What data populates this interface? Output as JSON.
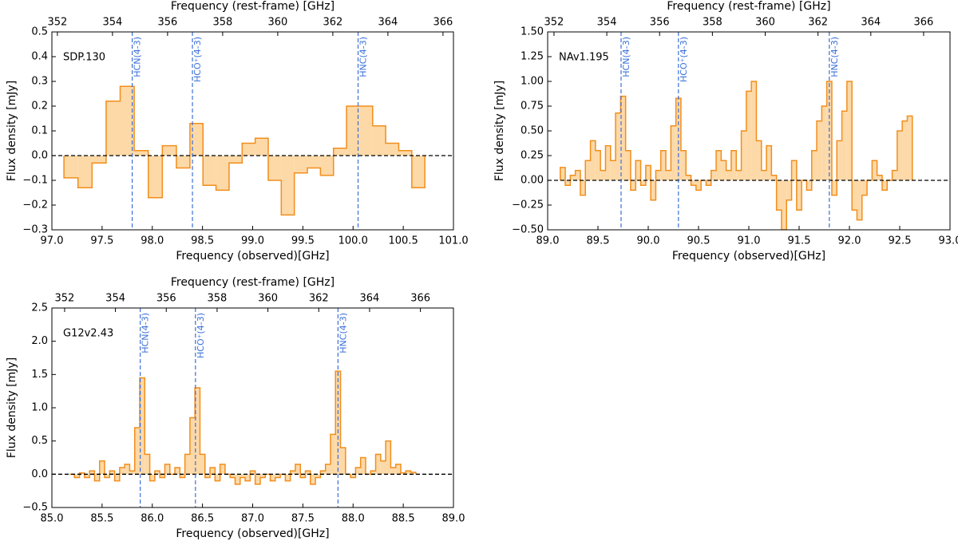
{
  "chart_data": [
    {
      "type": "step",
      "annotation": "SDP.130",
      "xlabel": "Frequency  (observed)[GHz]",
      "x2label": "Frequency (rest-frame) [GHz]",
      "ylabel": "Flux density [mJy]",
      "xlim": [
        97.0,
        101.0
      ],
      "xticks": [
        {
          "value": 97.0,
          "label": "97.0"
        },
        {
          "value": 97.5,
          "label": "97.5"
        },
        {
          "value": 98.0,
          "label": "98.0"
        },
        {
          "value": 98.5,
          "label": "98.5"
        },
        {
          "value": 99.0,
          "label": "99.0"
        },
        {
          "value": 99.5,
          "label": "99.5"
        },
        {
          "value": 100.0,
          "label": "100.0"
        },
        {
          "value": 100.5,
          "label": "100.5"
        },
        {
          "value": 101.0,
          "label": "101.0"
        }
      ],
      "x2lim": [
        351.8,
        366.38
      ],
      "x2ticks": [
        352,
        354,
        356,
        358,
        360,
        362,
        364,
        366
      ],
      "ylim": [
        -0.3,
        0.5
      ],
      "yticks": [
        {
          "value": -0.3,
          "label": "−0.3"
        },
        {
          "value": -0.2,
          "label": "−0.2"
        },
        {
          "value": -0.1,
          "label": "−0.1"
        },
        {
          "value": 0.0,
          "label": "0.0"
        },
        0.1,
        0.2,
        0.3,
        0.4,
        0.5
      ],
      "x": [
        97.19,
        97.33,
        97.47,
        97.61,
        97.75,
        97.89,
        98.03,
        98.17,
        98.31,
        98.44,
        98.57,
        98.7,
        98.83,
        98.96,
        99.09,
        99.22,
        99.35,
        99.48,
        99.61,
        99.74,
        99.87,
        100.0,
        100.13,
        100.26,
        100.39,
        100.52,
        100.65
      ],
      "values": [
        -0.09,
        -0.13,
        -0.03,
        0.22,
        0.28,
        0.02,
        -0.17,
        0.04,
        -0.05,
        0.13,
        -0.12,
        -0.14,
        -0.03,
        0.05,
        0.07,
        -0.1,
        -0.24,
        -0.07,
        -0.05,
        -0.08,
        0.03,
        0.2,
        0.2,
        0.12,
        0.05,
        0.02,
        -0.13
      ],
      "color": "#f28e1c",
      "fill_color": "#fdd9a8",
      "line_color": "#3a6fd8",
      "lines": [
        {
          "label": "HCN(4-3)",
          "x": 97.8
        },
        {
          "label": "HCO⁺(4-3)",
          "x": 98.4
        },
        {
          "label": "HNC(4-3)",
          "x": 100.05
        }
      ]
    },
    {
      "type": "step",
      "annotation": "NAv1.195",
      "xlabel": "Frequency  (observed)[GHz]",
      "x2label": "Frequency (rest-frame) [GHz]",
      "ylabel": "Flux density [mJy]",
      "xlim": [
        89.0,
        93.0
      ],
      "xticks": [
        {
          "value": 89.0,
          "label": "89.0"
        },
        {
          "value": 89.5,
          "label": "89.5"
        },
        {
          "value": 90.0,
          "label": "90.0"
        },
        {
          "value": 90.5,
          "label": "90.5"
        },
        {
          "value": 91.0,
          "label": "91.0"
        },
        {
          "value": 91.5,
          "label": "91.5"
        },
        {
          "value": 92.0,
          "label": "92.0"
        },
        {
          "value": 92.5,
          "label": "92.5"
        },
        {
          "value": 93.0,
          "label": "93.0"
        }
      ],
      "x2lim": [
        351.76,
        367.0
      ],
      "x2ticks": [
        352,
        354,
        356,
        358,
        360,
        362,
        364,
        366
      ],
      "ylim": [
        -0.5,
        1.5
      ],
      "yticks": [
        {
          "value": -0.5,
          "label": "−0.50"
        },
        {
          "value": -0.25,
          "label": "−0.25"
        },
        {
          "value": 0.0,
          "label": "0.00"
        },
        0.25,
        {
          "value": 0.5,
          "label": "0.50"
        },
        0.75,
        {
          "value": 1.0,
          "label": "1.00"
        },
        1.25,
        {
          "value": 1.5,
          "label": "1.50"
        }
      ],
      "x": [
        89.15,
        89.2,
        89.25,
        89.3,
        89.35,
        89.4,
        89.45,
        89.5,
        89.55,
        89.6,
        89.65,
        89.7,
        89.75,
        89.8,
        89.85,
        89.9,
        89.95,
        90.0,
        90.05,
        90.1,
        90.15,
        90.2,
        90.25,
        90.3,
        90.35,
        90.4,
        90.45,
        90.5,
        90.55,
        90.6,
        90.65,
        90.7,
        90.75,
        90.8,
        90.85,
        90.9,
        90.95,
        91.0,
        91.05,
        91.1,
        91.15,
        91.2,
        91.25,
        91.3,
        91.35,
        91.4,
        91.45,
        91.5,
        91.55,
        91.6,
        91.65,
        91.7,
        91.75,
        91.8,
        91.85,
        91.9,
        91.95,
        92.0,
        92.05,
        92.1,
        92.15,
        92.2,
        92.25,
        92.3,
        92.35,
        92.4,
        92.45,
        92.5,
        92.55,
        92.6
      ],
      "values": [
        0.13,
        -0.05,
        0.05,
        0.1,
        -0.15,
        0.2,
        0.4,
        0.3,
        0.1,
        0.35,
        0.2,
        0.68,
        0.85,
        0.3,
        -0.1,
        0.2,
        -0.05,
        0.15,
        -0.2,
        0.1,
        0.3,
        0.1,
        0.55,
        0.83,
        0.3,
        0.05,
        -0.05,
        -0.1,
        0.0,
        -0.05,
        0.1,
        0.3,
        0.2,
        0.1,
        0.3,
        0.1,
        0.5,
        0.9,
        1.0,
        0.4,
        0.1,
        0.35,
        0.05,
        -0.3,
        -0.5,
        -0.2,
        0.2,
        -0.3,
        0.0,
        -0.1,
        0.3,
        0.6,
        0.75,
        1.0,
        -0.15,
        0.4,
        0.7,
        1.0,
        -0.3,
        -0.4,
        -0.15,
        0.0,
        0.2,
        0.05,
        -0.1,
        0.0,
        0.1,
        0.5,
        0.6,
        0.65
      ],
      "color": "#f28e1c",
      "fill_color": "#fdd9a8",
      "line_color": "#3a6fd8",
      "lines": [
        {
          "label": "HCN(4-3)",
          "x": 89.73
        },
        {
          "label": "HCO⁺(4-3)",
          "x": 90.3
        },
        {
          "label": "HNC(4-3)",
          "x": 91.8
        }
      ]
    },
    {
      "type": "step",
      "annotation": "G12v2.43",
      "xlabel": "Frequency  (observed)[GHz]",
      "x2label": "Frequency (rest-frame) [GHz]",
      "ylabel": "Flux density [mJy]",
      "xlim": [
        85.0,
        89.0
      ],
      "xticks": [
        {
          "value": 85.0,
          "label": "85.0"
        },
        {
          "value": 85.5,
          "label": "85.5"
        },
        {
          "value": 86.0,
          "label": "86.0"
        },
        {
          "value": 86.5,
          "label": "86.5"
        },
        {
          "value": 87.0,
          "label": "87.0"
        },
        {
          "value": 87.5,
          "label": "87.5"
        },
        {
          "value": 88.0,
          "label": "88.0"
        },
        {
          "value": 88.5,
          "label": "88.5"
        },
        {
          "value": 89.0,
          "label": "89.0"
        }
      ],
      "x2lim": [
        351.5,
        367.3
      ],
      "x2ticks": [
        352,
        354,
        356,
        358,
        360,
        362,
        364,
        366
      ],
      "ylim": [
        -0.5,
        2.5
      ],
      "yticks": [
        {
          "value": -0.5,
          "label": "−0.5"
        },
        {
          "value": 0.0,
          "label": "0.0"
        },
        0.5,
        {
          "value": 1.0,
          "label": "1.0"
        },
        1.5,
        {
          "value": 2.0,
          "label": "2.0"
        },
        2.5
      ],
      "x": [
        85.2,
        85.25,
        85.3,
        85.35,
        85.4,
        85.45,
        85.5,
        85.55,
        85.6,
        85.65,
        85.7,
        85.75,
        85.8,
        85.85,
        85.9,
        85.95,
        86.0,
        86.05,
        86.1,
        86.15,
        86.2,
        86.25,
        86.3,
        86.35,
        86.4,
        86.45,
        86.5,
        86.55,
        86.6,
        86.65,
        86.7,
        86.75,
        86.8,
        86.85,
        86.9,
        86.95,
        87.0,
        87.05,
        87.1,
        87.15,
        87.2,
        87.25,
        87.3,
        87.35,
        87.4,
        87.45,
        87.5,
        87.55,
        87.6,
        87.65,
        87.7,
        87.75,
        87.8,
        87.85,
        87.9,
        87.95,
        88.0,
        88.05,
        88.1,
        88.15,
        88.2,
        88.25,
        88.3,
        88.35,
        88.4,
        88.45,
        88.5,
        88.55,
        88.6
      ],
      "values": [
        0.0,
        -0.05,
        0.02,
        -0.05,
        0.05,
        -0.1,
        0.2,
        -0.05,
        0.05,
        -0.1,
        0.1,
        0.15,
        0.05,
        0.7,
        1.45,
        0.3,
        -0.1,
        0.05,
        -0.05,
        0.15,
        0.0,
        0.1,
        -0.05,
        0.3,
        0.85,
        1.3,
        0.3,
        -0.05,
        0.1,
        -0.1,
        0.15,
        0.0,
        -0.05,
        -0.15,
        -0.05,
        -0.1,
        0.05,
        -0.15,
        -0.05,
        0.0,
        -0.1,
        -0.05,
        0.0,
        -0.1,
        0.05,
        0.15,
        -0.05,
        0.05,
        -0.15,
        -0.05,
        0.05,
        0.15,
        0.6,
        1.55,
        0.4,
        0.0,
        -0.05,
        0.1,
        0.25,
        0.0,
        0.05,
        0.3,
        0.2,
        0.5,
        0.1,
        0.15,
        0.02,
        0.05,
        0.03
      ],
      "color": "#f28e1c",
      "fill_color": "#fdd9a8",
      "line_color": "#3a6fd8",
      "lines": [
        {
          "label": "HCN(4-3)",
          "x": 85.88
        },
        {
          "label": "HCO⁺(4-3)",
          "x": 86.43
        },
        {
          "label": "HNC(4-3)",
          "x": 87.85
        }
      ]
    }
  ]
}
